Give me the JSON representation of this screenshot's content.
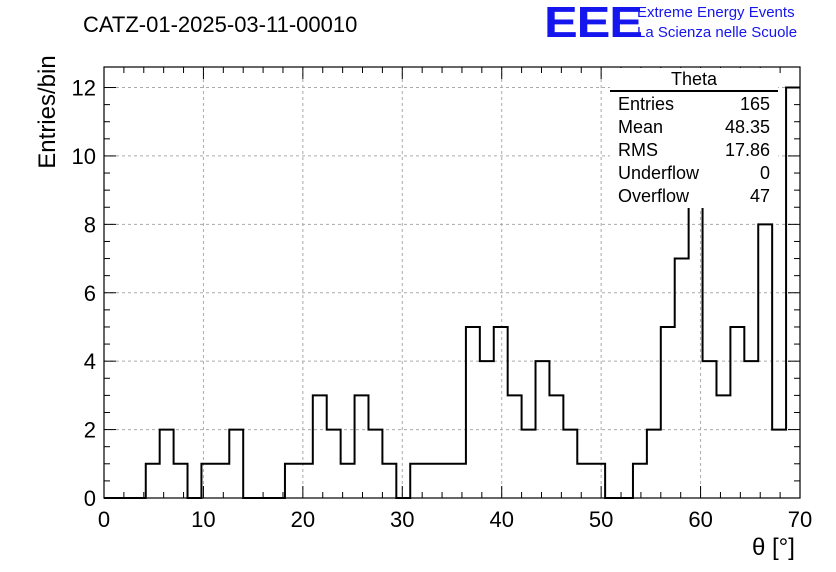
{
  "header": {
    "title": "CATZ-01-2025-03-11-00010",
    "logo": "EEE",
    "logo_line1": "Extreme Energy Events",
    "logo_line2": "La Scienza nelle Scuole"
  },
  "stats_box": {
    "name": "Theta",
    "rows": [
      {
        "label": "Entries",
        "value": "165"
      },
      {
        "label": "Mean",
        "value": "48.35"
      },
      {
        "label": "RMS",
        "value": "17.86"
      },
      {
        "label": "Underflow",
        "value": "0"
      },
      {
        "label": "Overflow",
        "value": "47"
      }
    ]
  },
  "chart_data": {
    "type": "bar",
    "xlabel": "θ [°]",
    "ylabel": "Entries/bin",
    "xlim": [
      0,
      70
    ],
    "ylim": [
      0,
      12.6
    ],
    "xticks": [
      0,
      10,
      20,
      30,
      40,
      50,
      60,
      70
    ],
    "yticks": [
      0,
      2,
      4,
      6,
      8,
      10,
      12
    ],
    "grid": true,
    "bin_width": 1.4,
    "bin_edges_start": 0,
    "values": [
      0,
      0,
      0,
      1,
      2,
      1,
      0,
      1,
      1,
      2,
      0,
      0,
      0,
      1,
      1,
      3,
      2,
      1,
      3,
      2,
      1,
      0,
      1,
      1,
      1,
      1,
      5,
      4,
      5,
      3,
      2,
      4,
      3,
      2,
      1,
      1,
      0,
      0,
      1,
      2,
      5,
      7,
      9,
      4,
      3,
      5,
      4,
      8,
      2,
      12
    ],
    "stroke": "#000000"
  }
}
